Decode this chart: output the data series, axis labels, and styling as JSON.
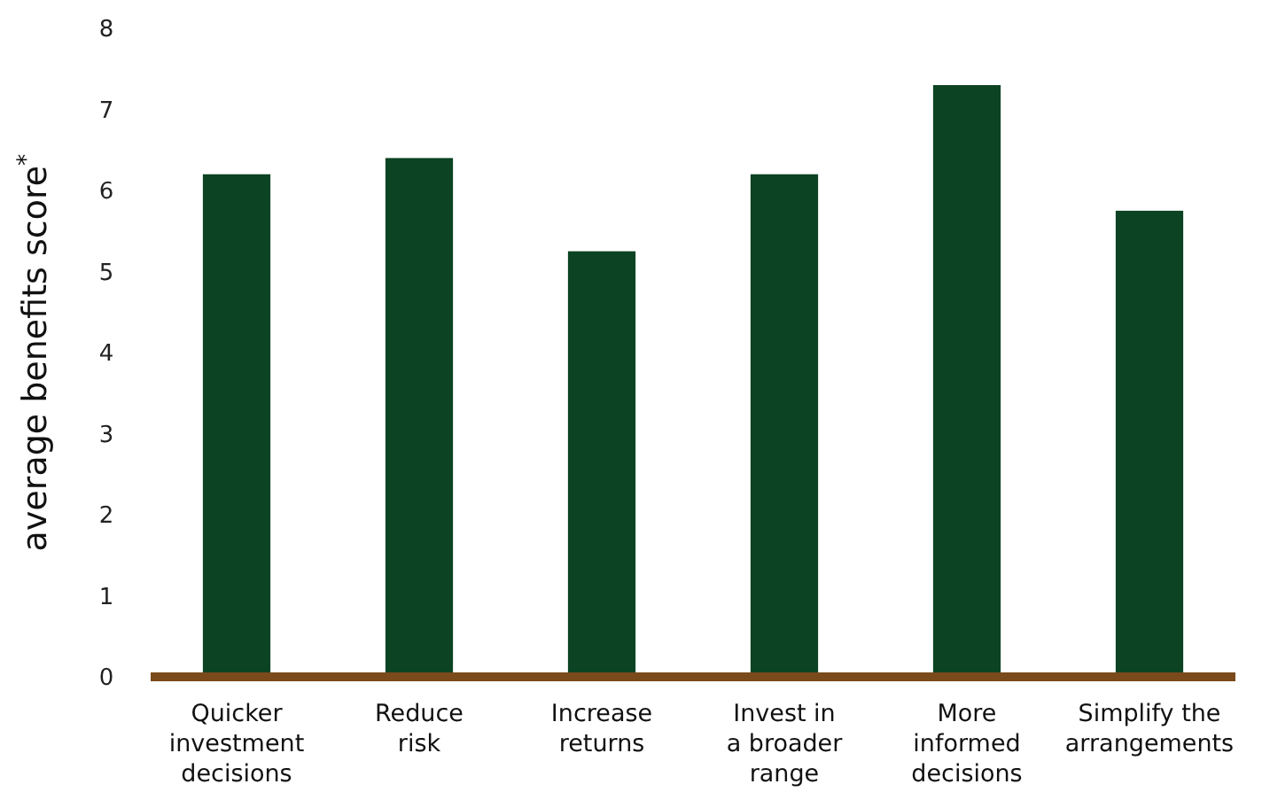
{
  "chart_data": {
    "type": "bar",
    "ylabel": "average benefits score$^{*}$",
    "categories": [
      "Quicker\ninvestment\ndecisions",
      "Reduce\nrisk",
      "Increase\nreturns",
      "Invest in\na broader\nrange",
      "More\ninformed\ndecisions",
      "Simplify the\narrangements"
    ],
    "values": [
      6.2,
      6.4,
      5.25,
      6.2,
      7.3,
      5.75
    ],
    "color": "#0b4323",
    "ylim": [
      0,
      8
    ],
    "yticks": [
      0,
      1,
      2,
      3,
      4,
      5,
      6,
      7,
      8
    ],
    "grid": false
  }
}
